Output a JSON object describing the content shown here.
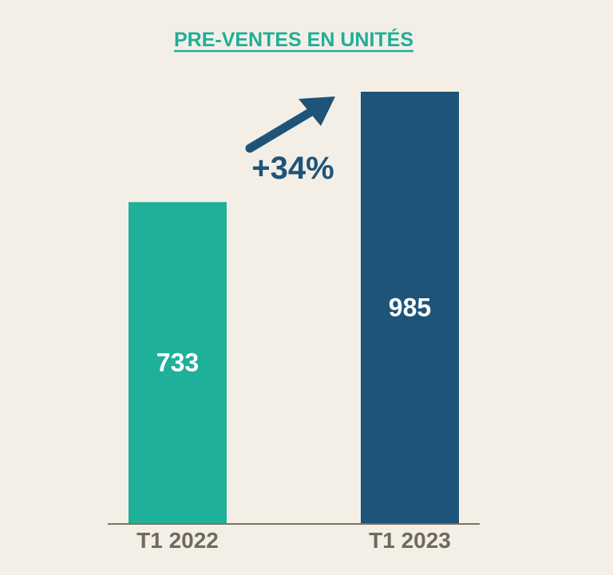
{
  "colors": {
    "background": "#f3efe6",
    "title": "#1fae98",
    "bar_2022": "#1fb09a",
    "bar_2023": "#1e5478",
    "value_label": "#ffffff",
    "axis": "#7a7466",
    "category_label": "#6f6a5c",
    "growth": "#1e5478"
  },
  "chart_data": {
    "type": "bar",
    "title": "PRE-VENTES EN UNITÉS",
    "categories": [
      "T1 2022",
      "T1 2023"
    ],
    "values": [
      733,
      985
    ],
    "value_labels": [
      "733",
      "985"
    ],
    "xlabel": "",
    "ylabel": "",
    "ylim": [
      0,
      1000
    ],
    "grid": false,
    "annotations": [
      {
        "text": "+34%",
        "icon": "arrow-up-right-icon"
      }
    ]
  }
}
